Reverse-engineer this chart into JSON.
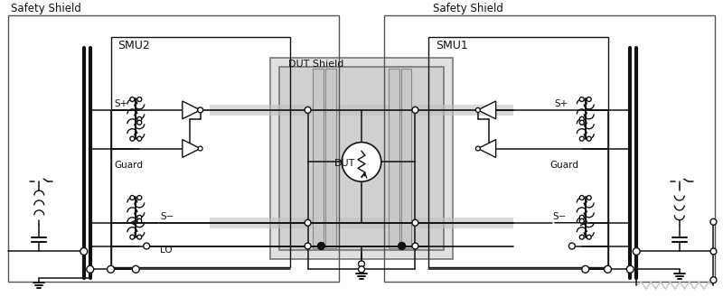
{
  "bg": "#ffffff",
  "lc": "#111111",
  "gc": "#c0c0c0",
  "labels": {
    "ss_left": "Safety Shield",
    "ss_right": "Safety Shield",
    "smu2": "SMU2",
    "smu1": "SMU1",
    "dut_shield": "DUT Shield",
    "dut": "DUT",
    "guard_l": "Guard",
    "guard_r": "Guard",
    "sp": "S+",
    "sm": "S−",
    "lo": "LO"
  }
}
